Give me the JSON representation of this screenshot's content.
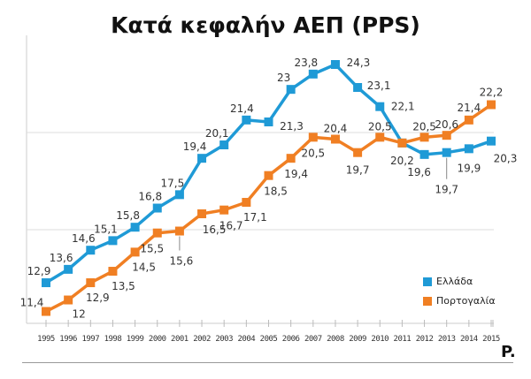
{
  "chart_data": {
    "type": "line",
    "title": "Κατά κεφαλήν ΑΕΠ (PPS)",
    "x": [
      "1995",
      "1996",
      "1997",
      "1998",
      "1999",
      "2000",
      "2001",
      "2002",
      "2003",
      "2004",
      "2005",
      "2006",
      "2007",
      "2008",
      "2009",
      "2010",
      "2011",
      "2012",
      "2013",
      "2014",
      "2015"
    ],
    "series": [
      {
        "name": "Ελλάδα",
        "color": "#1f9ad6",
        "values": [
          12.9,
          13.6,
          14.6,
          15.1,
          15.8,
          16.8,
          17.5,
          19.4,
          20.1,
          21.4,
          21.3,
          23,
          23.8,
          24.3,
          23.1,
          22.1,
          20.2,
          19.6,
          19.7,
          19.9,
          20.3
        ],
        "labels": [
          "12,9",
          "13,6",
          "14,6",
          "15,1",
          "15,8",
          "16,8",
          "17,5",
          "19,4",
          "20,1",
          "21,4",
          "21,3",
          "23",
          "23,8",
          "24,3",
          "23,1",
          "22,1",
          "20,2",
          "19,6",
          "19,7",
          "19,9",
          "20,3"
        ]
      },
      {
        "name": "Πορτογαλία",
        "color": "#f07f23",
        "values": [
          11.4,
          12,
          12.9,
          13.5,
          14.5,
          15.5,
          15.6,
          16.5,
          16.7,
          17.1,
          18.5,
          19.4,
          20.5,
          20.4,
          19.7,
          20.5,
          20.2,
          20.5,
          20.6,
          21.4,
          22.2
        ],
        "labels": [
          "11,4",
          "12",
          "12,9",
          "13,5",
          "14,5",
          "15,5",
          "15,6",
          "16,5",
          "16,7",
          "17,1",
          "18,5",
          "19,4",
          "20,5",
          "20,4",
          "19,7",
          "20,5",
          "",
          "20,5",
          "20,6",
          "21,4",
          "22,2"
        ]
      }
    ],
    "legend_position": "bottom-right",
    "grid": true,
    "xlabel": "",
    "ylabel": ""
  },
  "logo": "P."
}
